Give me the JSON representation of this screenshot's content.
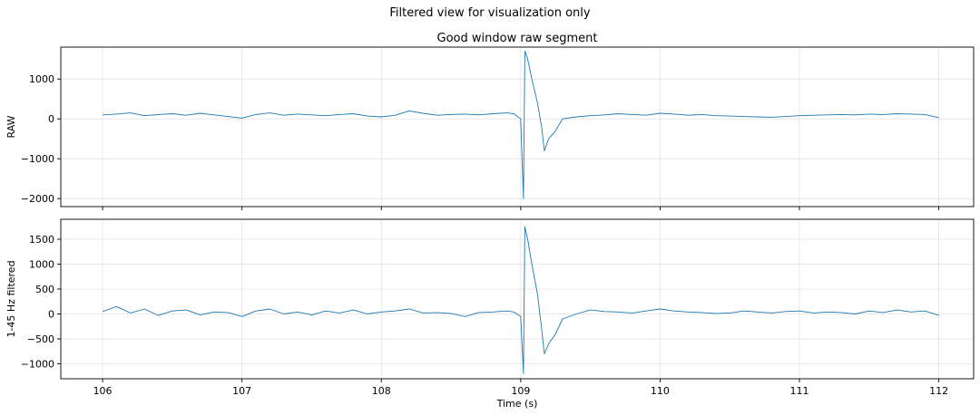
{
  "figure": {
    "suptitle": "Filtered view for visualization only"
  },
  "chart_data": [
    {
      "type": "line",
      "title": "Good window raw segment",
      "xlabel": "",
      "ylabel": "RAW",
      "xlim": [
        105.7,
        112.25
      ],
      "ylim": [
        -2200,
        1800
      ],
      "xticks": [
        106,
        107,
        108,
        109,
        110,
        111,
        112
      ],
      "xtick_labels_visible": false,
      "yticks": [
        -2000,
        -1000,
        0,
        1000
      ],
      "ytick_labels": [
        "−2000",
        "−1000",
        "0",
        "1000"
      ],
      "grid": true,
      "color": "#1f77b4",
      "series": [
        {
          "x": [
            106.0,
            106.1,
            106.2,
            106.3,
            106.4,
            106.5,
            106.6,
            106.7,
            106.8,
            106.9,
            107.0,
            107.1,
            107.2,
            107.3,
            107.4,
            107.5,
            107.6,
            107.7,
            107.8,
            107.9,
            108.0,
            108.1,
            108.2,
            108.3,
            108.4,
            108.5,
            108.6,
            108.7,
            108.8,
            108.9,
            108.95,
            109.0,
            109.02,
            109.03,
            109.05,
            109.08,
            109.12,
            109.15,
            109.17,
            109.2,
            109.25,
            109.3,
            109.4,
            109.5,
            109.6,
            109.7,
            109.8,
            109.9,
            110.0,
            110.1,
            110.2,
            110.3,
            110.4,
            110.5,
            110.6,
            110.7,
            110.8,
            110.9,
            111.0,
            111.1,
            111.2,
            111.3,
            111.4,
            111.5,
            111.6,
            111.7,
            111.8,
            111.9,
            112.0
          ],
          "y": [
            100,
            120,
            150,
            80,
            110,
            130,
            90,
            140,
            100,
            60,
            20,
            110,
            150,
            90,
            120,
            100,
            80,
            110,
            130,
            70,
            50,
            90,
            200,
            140,
            90,
            110,
            120,
            100,
            130,
            150,
            130,
            0,
            -2000,
            1700,
            1500,
            1000,
            400,
            -200,
            -800,
            -500,
            -300,
            0,
            50,
            80,
            100,
            130,
            110,
            90,
            140,
            120,
            90,
            110,
            80,
            70,
            60,
            50,
            40,
            60,
            80,
            90,
            100,
            110,
            100,
            120,
            110,
            130,
            120,
            110,
            30
          ]
        }
      ]
    },
    {
      "type": "line",
      "title": "",
      "xlabel": "Time (s)",
      "ylabel": "1-45 Hz filtered",
      "xlim": [
        105.7,
        112.25
      ],
      "ylim": [
        -1300,
        1900
      ],
      "xticks": [
        106,
        107,
        108,
        109,
        110,
        111,
        112
      ],
      "xtick_labels": [
        "106",
        "107",
        "108",
        "109",
        "110",
        "111",
        "112"
      ],
      "yticks": [
        -1000,
        -500,
        0,
        500,
        1000,
        1500
      ],
      "ytick_labels": [
        "−1000",
        "−500",
        "0",
        "500",
        "1000",
        "1500"
      ],
      "grid": true,
      "color": "#1f77b4",
      "series": [
        {
          "x": [
            106.0,
            106.1,
            106.2,
            106.3,
            106.4,
            106.5,
            106.6,
            106.7,
            106.8,
            106.9,
            107.0,
            107.1,
            107.2,
            107.3,
            107.4,
            107.5,
            107.6,
            107.7,
            107.8,
            107.9,
            108.0,
            108.1,
            108.2,
            108.3,
            108.4,
            108.5,
            108.6,
            108.7,
            108.8,
            108.9,
            108.95,
            109.0,
            109.02,
            109.03,
            109.05,
            109.08,
            109.12,
            109.15,
            109.17,
            109.2,
            109.25,
            109.3,
            109.4,
            109.5,
            109.6,
            109.7,
            109.8,
            109.9,
            110.0,
            110.1,
            110.2,
            110.3,
            110.4,
            110.5,
            110.6,
            110.7,
            110.8,
            110.9,
            111.0,
            111.1,
            111.2,
            111.3,
            111.4,
            111.5,
            111.6,
            111.7,
            111.8,
            111.9,
            112.0
          ],
          "y": [
            50,
            150,
            20,
            100,
            -30,
            60,
            80,
            -20,
            40,
            30,
            -50,
            60,
            100,
            0,
            40,
            -20,
            60,
            20,
            80,
            0,
            40,
            60,
            100,
            20,
            30,
            10,
            -50,
            30,
            40,
            60,
            40,
            -50,
            -1200,
            1750,
            1500,
            1000,
            400,
            -300,
            -800,
            -600,
            -400,
            -100,
            0,
            80,
            50,
            40,
            20,
            60,
            100,
            60,
            40,
            30,
            10,
            20,
            60,
            40,
            20,
            50,
            60,
            20,
            40,
            30,
            0,
            60,
            30,
            80,
            40,
            60,
            -30
          ]
        }
      ]
    }
  ]
}
